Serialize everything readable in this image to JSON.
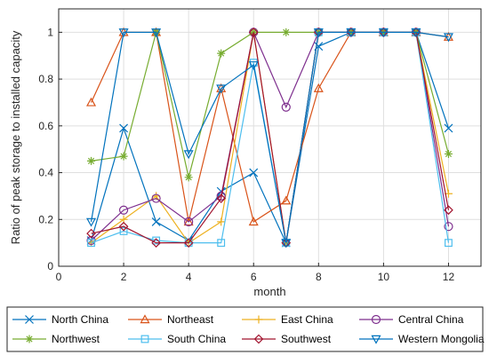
{
  "chart_data": {
    "type": "line",
    "xlabel": "month",
    "ylabel": "Ratio of peak storage to installed capacity",
    "xlim": [
      0,
      13
    ],
    "ylim": [
      0,
      1.1
    ],
    "xticks": [
      0,
      2,
      4,
      6,
      8,
      10,
      12
    ],
    "yticks": [
      0,
      0.2,
      0.4,
      0.6,
      0.8,
      1
    ],
    "grid": true,
    "legend_position": "bottom",
    "x": [
      1,
      2,
      3,
      4,
      5,
      6,
      7,
      8,
      9,
      10,
      11,
      12
    ],
    "series": [
      {
        "name": "North China",
        "marker": "x",
        "color": "#0072BD",
        "values": [
          0.11,
          0.59,
          0.19,
          0.11,
          0.32,
          0.4,
          0.1,
          0.94,
          1.0,
          1.0,
          1.0,
          0.59
        ]
      },
      {
        "name": "Northeast",
        "marker": "triangle-up",
        "color": "#D95319",
        "values": [
          0.7,
          1.0,
          1.0,
          0.19,
          0.76,
          0.19,
          0.28,
          0.76,
          1.0,
          1.0,
          1.0,
          0.98
        ]
      },
      {
        "name": "East China",
        "marker": "plus",
        "color": "#EDB120",
        "values": [
          0.1,
          0.2,
          0.3,
          0.1,
          0.19,
          1.0,
          0.1,
          1.0,
          1.0,
          1.0,
          1.0,
          0.31
        ]
      },
      {
        "name": "Central China",
        "marker": "circle",
        "color": "#7E2F8E",
        "values": [
          0.11,
          0.24,
          0.29,
          0.19,
          0.3,
          1.0,
          0.68,
          1.0,
          1.0,
          1.0,
          1.0,
          0.17
        ]
      },
      {
        "name": "Northwest",
        "marker": "asterisk",
        "color": "#77AC30",
        "values": [
          0.45,
          0.47,
          1.0,
          0.38,
          0.91,
          1.0,
          1.0,
          1.0,
          1.0,
          1.0,
          1.0,
          0.48
        ]
      },
      {
        "name": "South China",
        "marker": "square",
        "color": "#4DBEEE",
        "values": [
          0.1,
          0.15,
          0.11,
          0.1,
          0.1,
          0.87,
          0.1,
          1.0,
          1.0,
          1.0,
          1.0,
          0.1
        ]
      },
      {
        "name": "Southwest",
        "marker": "diamond",
        "color": "#A2142F",
        "values": [
          0.14,
          0.17,
          0.1,
          0.1,
          0.29,
          1.0,
          0.1,
          1.0,
          1.0,
          1.0,
          1.0,
          0.24
        ]
      },
      {
        "name": "Western Mongolia",
        "marker": "triangle-down",
        "color": "#0072BD",
        "values": [
          0.19,
          1.0,
          1.0,
          0.48,
          0.76,
          0.86,
          0.1,
          1.0,
          1.0,
          1.0,
          1.0,
          0.98
        ]
      }
    ]
  }
}
